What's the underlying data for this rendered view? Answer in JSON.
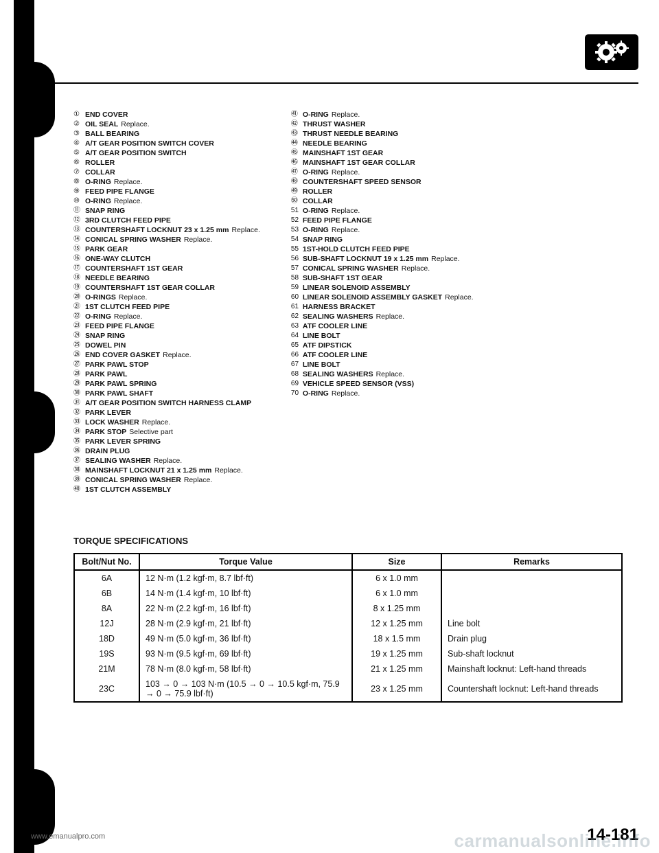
{
  "gear_icon": {
    "bg": "#000000",
    "fg": "#ffffff"
  },
  "rule_color": "#000000",
  "parts": {
    "left": [
      {
        "n": "①",
        "name": "END COVER"
      },
      {
        "n": "②",
        "name": "OIL SEAL",
        "note": "Replace."
      },
      {
        "n": "③",
        "name": "BALL BEARING"
      },
      {
        "n": "④",
        "name": "A/T GEAR POSITION SWITCH COVER"
      },
      {
        "n": "⑤",
        "name": "A/T GEAR POSITION SWITCH"
      },
      {
        "n": "⑥",
        "name": "ROLLER"
      },
      {
        "n": "⑦",
        "name": "COLLAR"
      },
      {
        "n": "⑧",
        "name": "O-RING",
        "note": "Replace."
      },
      {
        "n": "⑨",
        "name": "FEED PIPE FLANGE"
      },
      {
        "n": "⑩",
        "name": "O-RING",
        "note": "Replace."
      },
      {
        "n": "⑪",
        "name": "SNAP RING"
      },
      {
        "n": "⑫",
        "name": "3RD CLUTCH FEED PIPE"
      },
      {
        "n": "⑬",
        "name": "COUNTERSHAFT LOCKNUT 23 x 1.25 mm",
        "note": "Replace."
      },
      {
        "n": "⑭",
        "name": "CONICAL SPRING WASHER",
        "note": "Replace."
      },
      {
        "n": "⑮",
        "name": "PARK GEAR"
      },
      {
        "n": "⑯",
        "name": "ONE-WAY CLUTCH"
      },
      {
        "n": "⑰",
        "name": "COUNTERSHAFT 1ST GEAR"
      },
      {
        "n": "⑱",
        "name": "NEEDLE BEARING"
      },
      {
        "n": "⑲",
        "name": "COUNTERSHAFT 1ST GEAR COLLAR"
      },
      {
        "n": "⑳",
        "name": "O-RINGS",
        "note": "Replace."
      },
      {
        "n": "㉑",
        "name": "1ST CLUTCH FEED PIPE"
      },
      {
        "n": "㉒",
        "name": "O-RING",
        "note": "Replace."
      },
      {
        "n": "㉓",
        "name": "FEED PIPE FLANGE"
      },
      {
        "n": "㉔",
        "name": "SNAP RING"
      },
      {
        "n": "㉕",
        "name": "DOWEL PIN"
      },
      {
        "n": "㉖",
        "name": "END COVER GASKET",
        "note": "Replace."
      },
      {
        "n": "㉗",
        "name": "PARK PAWL STOP"
      },
      {
        "n": "㉘",
        "name": "PARK PAWL"
      },
      {
        "n": "㉙",
        "name": "PARK PAWL SPRING"
      },
      {
        "n": "㉚",
        "name": "PARK PAWL SHAFT"
      },
      {
        "n": "㉛",
        "name": "A/T GEAR POSITION SWITCH HARNESS CLAMP"
      },
      {
        "n": "㉜",
        "name": "PARK LEVER"
      },
      {
        "n": "㉝",
        "name": "LOCK WASHER",
        "note": "Replace."
      },
      {
        "n": "㉞",
        "name": "PARK STOP",
        "note": "Selective part"
      },
      {
        "n": "㉟",
        "name": "PARK LEVER SPRING"
      },
      {
        "n": "㊱",
        "name": "DRAIN PLUG"
      },
      {
        "n": "㊲",
        "name": "SEALING WASHER",
        "note": "Replace."
      },
      {
        "n": "㊳",
        "name": "MAINSHAFT LOCKNUT 21 x 1.25 mm",
        "note": "Replace."
      },
      {
        "n": "㊴",
        "name": "CONICAL SPRING WASHER",
        "note": "Replace."
      },
      {
        "n": "㊵",
        "name": "1ST CLUTCH ASSEMBLY"
      }
    ],
    "right": [
      {
        "n": "㊶",
        "name": "O-RING",
        "note": "Replace."
      },
      {
        "n": "㊷",
        "name": "THRUST WASHER"
      },
      {
        "n": "㊸",
        "name": "THRUST NEEDLE BEARING"
      },
      {
        "n": "㊹",
        "name": "NEEDLE BEARING"
      },
      {
        "n": "㊺",
        "name": "MAINSHAFT 1ST GEAR"
      },
      {
        "n": "㊻",
        "name": "MAINSHAFT 1ST GEAR COLLAR"
      },
      {
        "n": "㊼",
        "name": "O-RING",
        "note": "Replace."
      },
      {
        "n": "㊽",
        "name": "COUNTERSHAFT SPEED SENSOR"
      },
      {
        "n": "㊾",
        "name": "ROLLER"
      },
      {
        "n": "㊿",
        "name": "COLLAR"
      },
      {
        "n": "51",
        "name": "O-RING",
        "note": "Replace."
      },
      {
        "n": "52",
        "name": "FEED PIPE FLANGE"
      },
      {
        "n": "53",
        "name": "O-RING",
        "note": "Replace."
      },
      {
        "n": "54",
        "name": "SNAP RING"
      },
      {
        "n": "55",
        "name": "1ST-HOLD CLUTCH FEED PIPE"
      },
      {
        "n": "56",
        "name": "SUB-SHAFT LOCKNUT 19 x 1.25 mm",
        "note": "Replace."
      },
      {
        "n": "57",
        "name": "CONICAL SPRING WASHER",
        "note": "Replace."
      },
      {
        "n": "58",
        "name": "SUB-SHAFT 1ST GEAR"
      },
      {
        "n": "59",
        "name": "LINEAR SOLENOID ASSEMBLY"
      },
      {
        "n": "60",
        "name": "LINEAR SOLENOID ASSEMBLY GASKET",
        "note": "Replace."
      },
      {
        "n": "61",
        "name": "HARNESS BRACKET"
      },
      {
        "n": "62",
        "name": "SEALING WASHERS",
        "note": "Replace."
      },
      {
        "n": "63",
        "name": "ATF COOLER LINE"
      },
      {
        "n": "64",
        "name": "LINE BOLT"
      },
      {
        "n": "65",
        "name": "ATF DIPSTICK"
      },
      {
        "n": "66",
        "name": "ATF COOLER LINE"
      },
      {
        "n": "67",
        "name": "LINE BOLT"
      },
      {
        "n": "68",
        "name": "SEALING WASHERS",
        "note": "Replace."
      },
      {
        "n": "69",
        "name": "VEHICLE SPEED SENSOR (VSS)"
      },
      {
        "n": "70",
        "name": "O-RING",
        "note": "Replace."
      }
    ]
  },
  "torque_heading": "TORQUE SPECIFICATIONS",
  "torque_table": {
    "columns": [
      "Bolt/Nut No.",
      "Torque Value",
      "Size",
      "Remarks"
    ],
    "rows": [
      [
        "6A",
        "12 N·m (1.2 kgf·m, 8.7 lbf·ft)",
        "6 x 1.0 mm",
        ""
      ],
      [
        "6B",
        "14 N·m (1.4 kgf·m, 10 lbf·ft)",
        "6 x 1.0 mm",
        ""
      ],
      [
        "8A",
        "22 N·m (2.2 kgf·m, 16 lbf·ft)",
        "8 x 1.25 mm",
        ""
      ],
      [
        "12J",
        "28 N·m (2.9 kgf·m, 21 lbf·ft)",
        "12 x 1.25 mm",
        "Line bolt"
      ],
      [
        "18D",
        "49 N·m (5.0 kgf·m, 36 lbf·ft)",
        "18 x 1.5 mm",
        "Drain plug"
      ],
      [
        "19S",
        "93 N·m (9.5 kgf·m, 69 lbf·ft)",
        "19 x 1.25 mm",
        "Sub-shaft locknut"
      ],
      [
        "21M",
        "78 N·m (8.0 kgf·m, 58 lbf·ft)",
        "21 x 1.25 mm",
        "Mainshaft locknut: Left-hand threads"
      ],
      [
        "23C",
        "103 → 0 → 103 N·m (10.5 → 0 → 10.5 kgf·m, 75.9 → 0 → 75.9 lbf·ft)",
        "23 x 1.25 mm",
        "Countershaft locknut: Left-hand threads"
      ]
    ]
  },
  "footer": {
    "left": "www.emanualpro.com",
    "right": "14-181",
    "watermark": "carmanualsonline.info"
  }
}
